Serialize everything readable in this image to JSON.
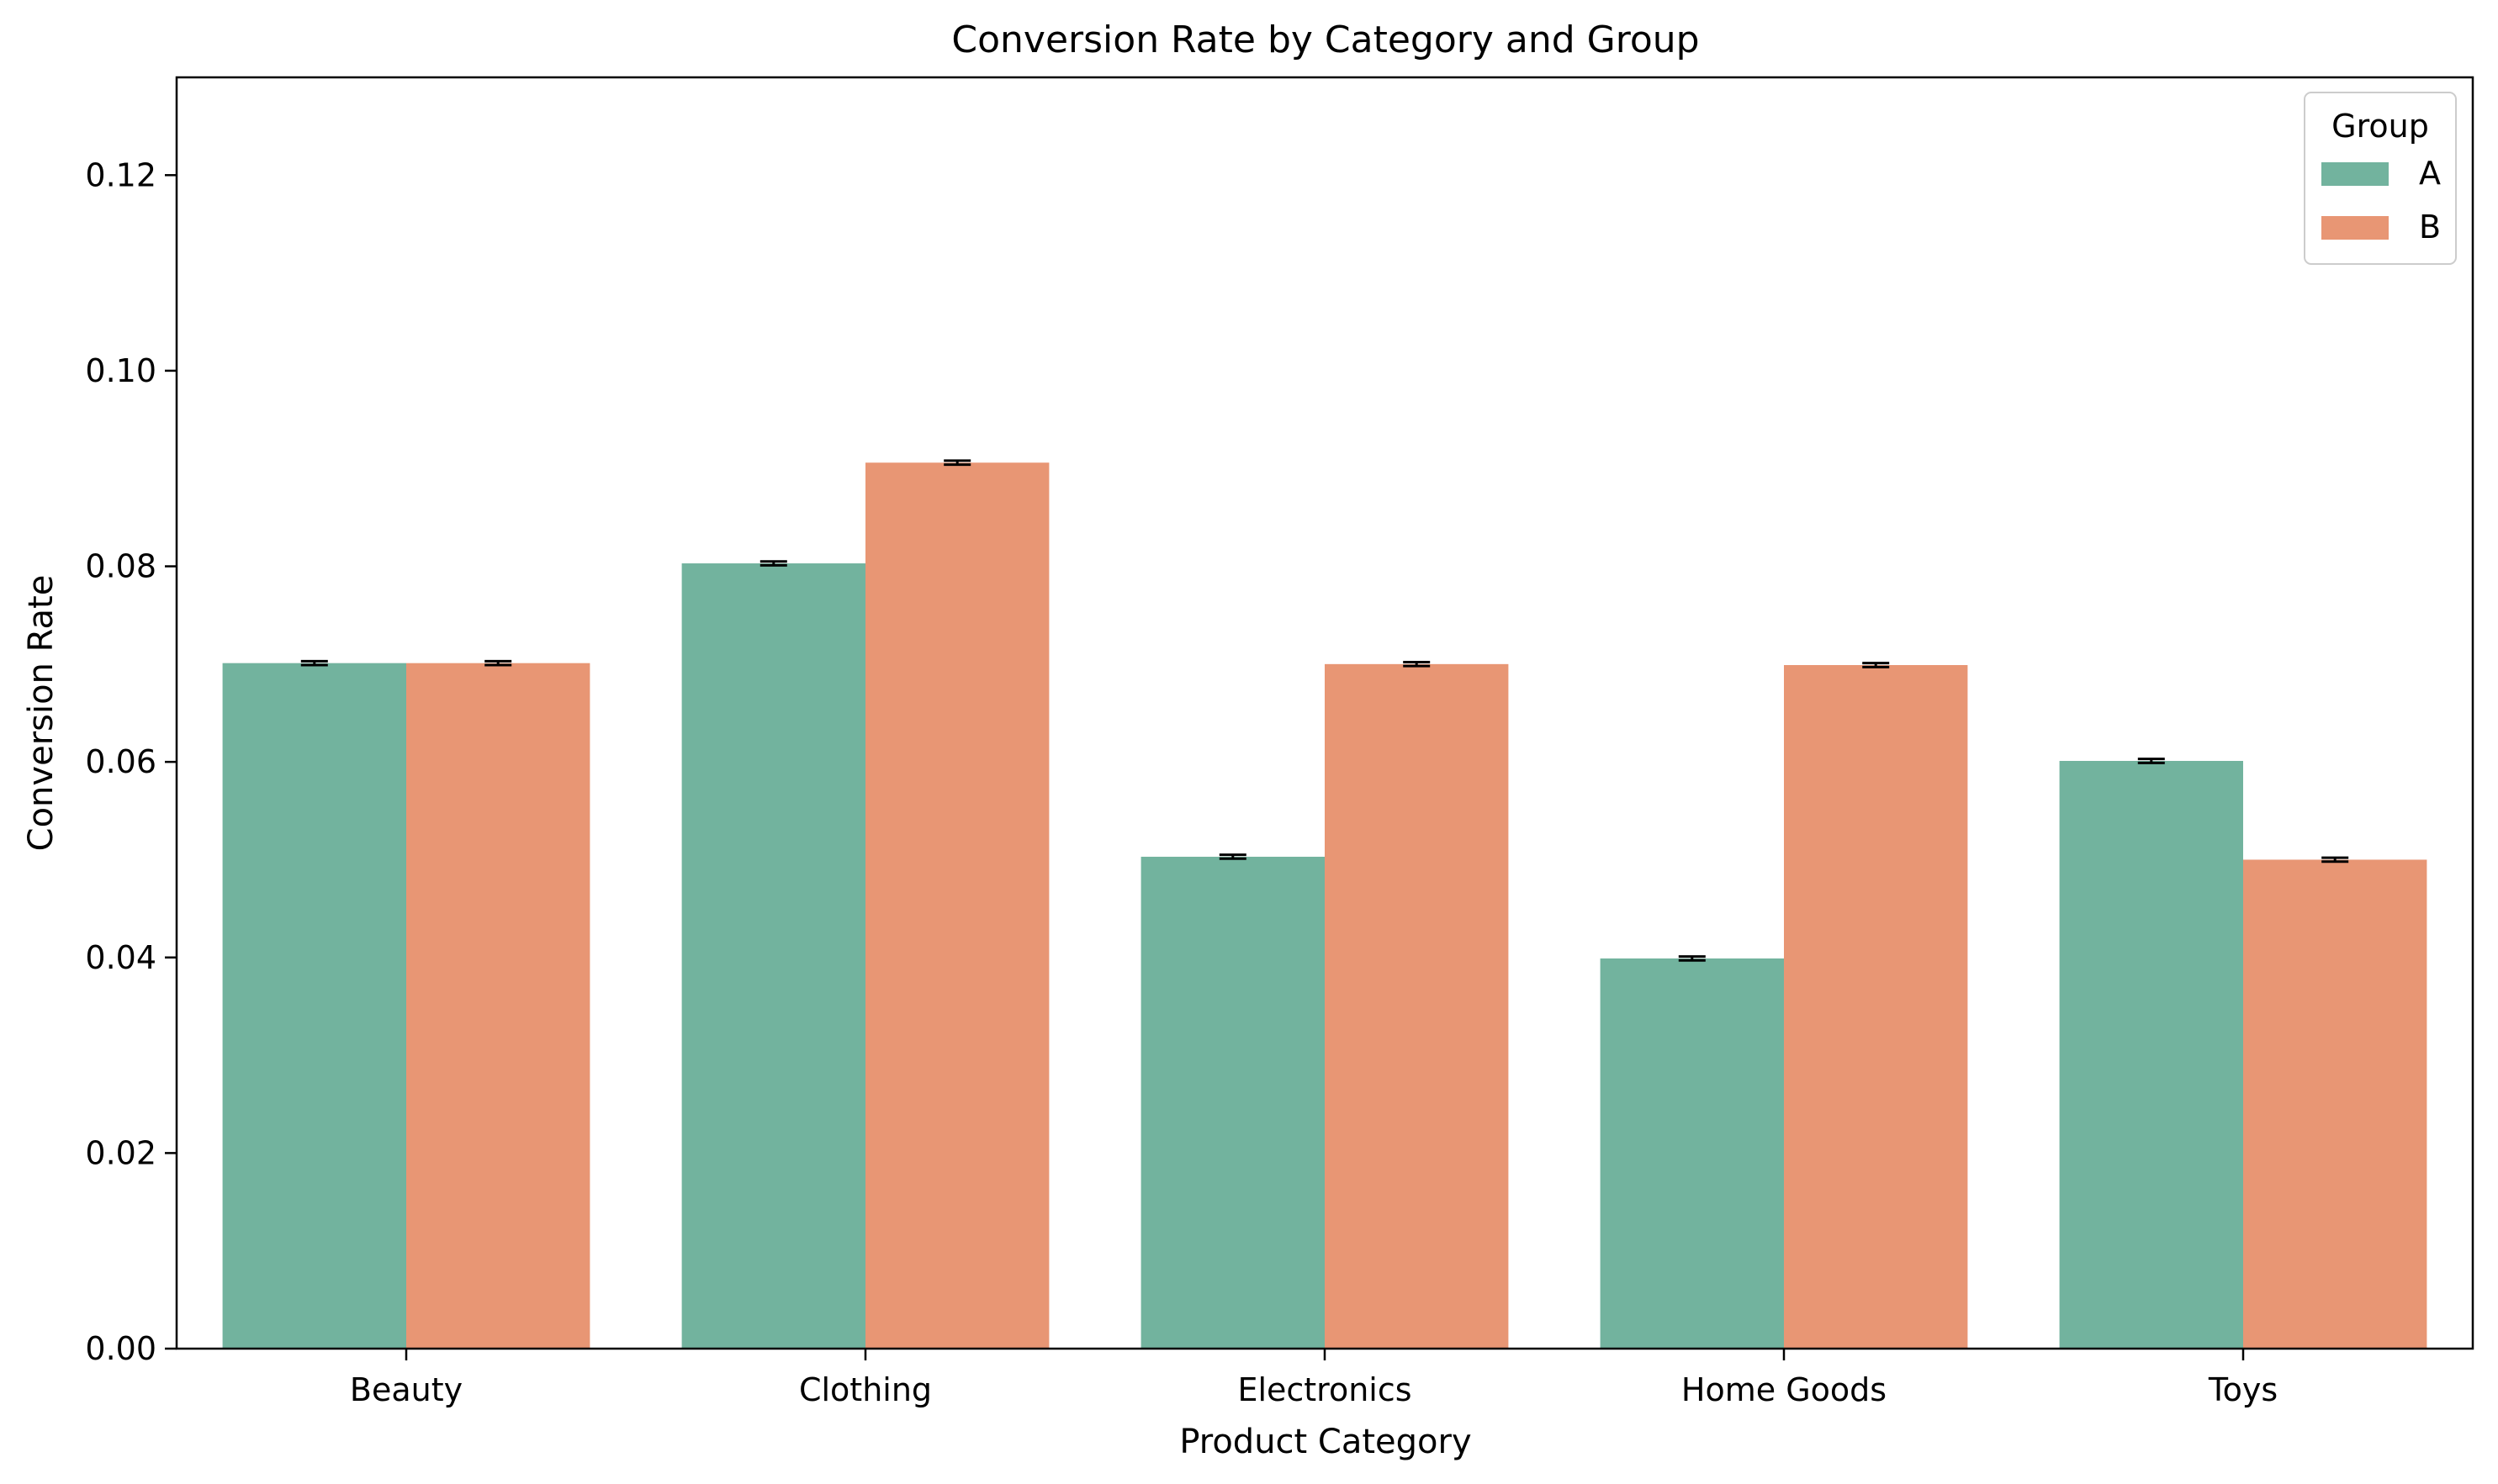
{
  "chart_data": {
    "type": "bar",
    "title": "Conversion Rate by Category and Group",
    "xlabel": "Product Category",
    "ylabel": "Conversion Rate",
    "categories": [
      "Beauty",
      "Clothing",
      "Electronics",
      "Home Goods",
      "Toys"
    ],
    "series": [
      {
        "name": "A",
        "color": "#72b39e",
        "values": [
          0.0701,
          0.0803,
          0.0503,
          0.0399,
          0.0601
        ],
        "error": [
          0.0002,
          0.0002,
          0.0002,
          0.0002,
          0.0002
        ]
      },
      {
        "name": "B",
        "color": "#e89674",
        "values": [
          0.0701,
          0.0906,
          0.07,
          0.0699,
          0.05
        ],
        "error": [
          0.0002,
          0.0002,
          0.0002,
          0.0002,
          0.0002
        ]
      }
    ],
    "ylim": [
      0,
      0.13
    ],
    "yticks": [
      "0.00",
      "0.02",
      "0.04",
      "0.06",
      "0.08",
      "0.10",
      "0.12"
    ],
    "legend": {
      "title": "Group",
      "position": "top-right"
    },
    "grid": false
  }
}
